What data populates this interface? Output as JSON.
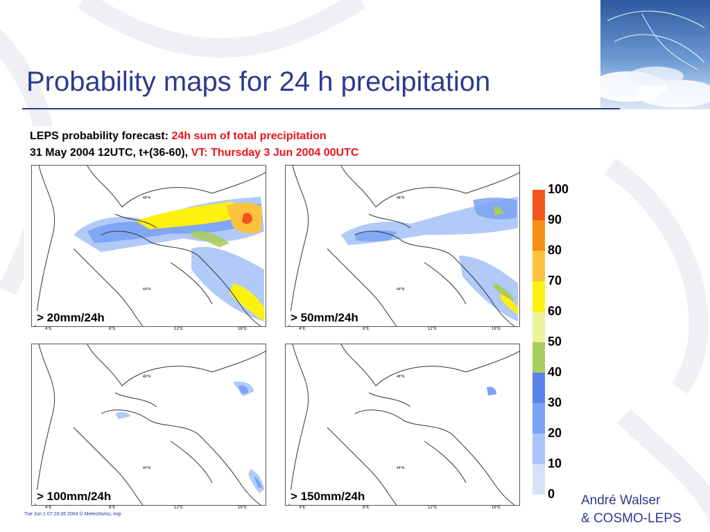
{
  "slide": {
    "title": "Probability maps for 24 h precipitation",
    "author_line1": "André Walser",
    "author_line2": "& COSMO-LEPS"
  },
  "figure": {
    "header_line1_black": "LEPS probability forecast:",
    "header_line1_red": "24h sum of total precipitation",
    "header_line2_black": "31 May 2004 12UTC, t+(36-60),",
    "header_line2_red": "VT: Thursday 3 Jun 2004 00UTC",
    "footer_stamp": "Tue Jun  1 07:20:26 2004 © MeteoSwiss; exp",
    "lon_labels": [
      "4°E",
      "8°E",
      "12°E",
      "16°E"
    ],
    "lat_labels": [
      "48°N",
      "44°N"
    ],
    "panels": [
      {
        "threshold": "> 20mm/24h"
      },
      {
        "threshold": "> 50mm/24h"
      },
      {
        "threshold": "> 100mm/24h"
      },
      {
        "threshold": "> 150mm/24h"
      }
    ],
    "colorbar": {
      "labels": [
        "100",
        "90",
        "80",
        "70",
        "60",
        "50",
        "40",
        "30",
        "20",
        "10",
        "0"
      ],
      "colors": [
        "#f0561a",
        "#f98e12",
        "#fdc23c",
        "#fcf10f",
        "#eef29a",
        "#a8cc5e",
        "#5b83e8",
        "#7ba2f3",
        "#a9c4f7",
        "#d5e2f6"
      ]
    }
  },
  "colors": {
    "title": "#2e3a8c",
    "header_red": "#e8141c"
  }
}
